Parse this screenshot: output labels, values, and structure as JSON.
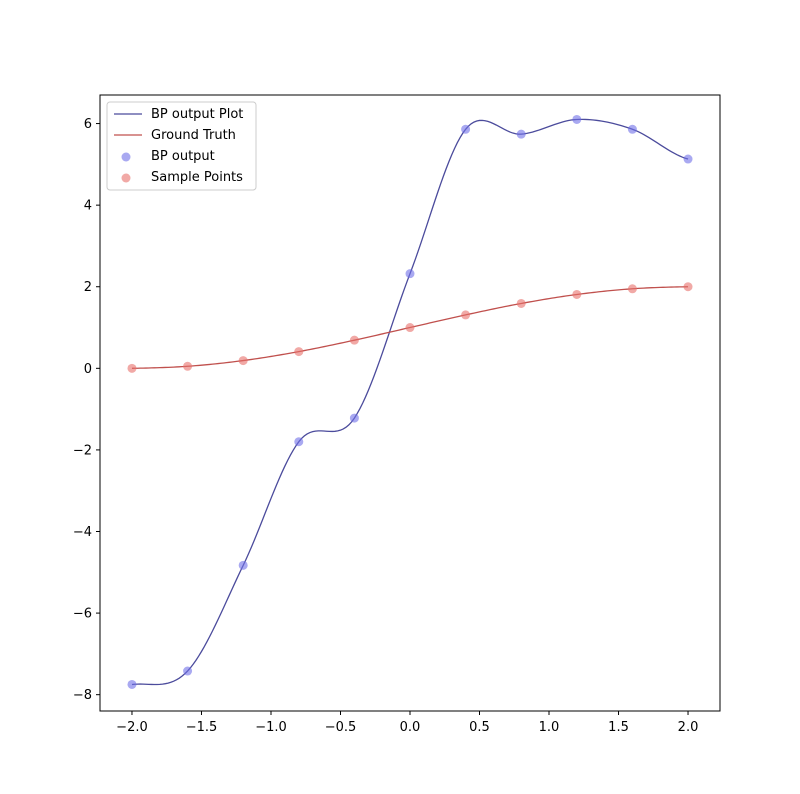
{
  "chart_data": {
    "type": "line",
    "title": "",
    "xlabel": "",
    "ylabel": "",
    "xlim": [
      -2.23,
      2.23
    ],
    "ylim": [
      -8.4,
      6.7
    ],
    "grid": false,
    "legend_position": "top-left",
    "xticks": [
      -2.0,
      -1.5,
      -1.0,
      -0.5,
      0.0,
      0.5,
      1.0,
      1.5,
      2.0
    ],
    "xtick_labels": [
      "−2.0",
      "−1.5",
      "−1.0",
      "−0.5",
      "0.0",
      "0.5",
      "1.0",
      "1.5",
      "2.0"
    ],
    "yticks": [
      -8,
      -6,
      -4,
      -2,
      0,
      2,
      4,
      6
    ],
    "ytick_labels": [
      "−8",
      "−6",
      "−4",
      "−2",
      "0",
      "2",
      "4",
      "6"
    ],
    "series": [
      {
        "name": "BP output Plot",
        "kind": "line",
        "color": "#4b4b9c",
        "x": [
          -2.0,
          -1.6,
          -1.2,
          -0.8,
          -0.4,
          0.0,
          0.4,
          0.8,
          1.2,
          1.6,
          2.0
        ],
        "y": [
          -7.75,
          -7.42,
          -4.83,
          -1.8,
          -1.22,
          2.32,
          5.86,
          5.74,
          6.1,
          5.86,
          5.13
        ]
      },
      {
        "name": "Ground Truth",
        "kind": "line",
        "color": "#c0504d",
        "x": [
          -2.0,
          -1.6,
          -1.2,
          -0.8,
          -0.4,
          0.0,
          0.4,
          0.8,
          1.2,
          1.6,
          2.0
        ],
        "y": [
          0.0,
          0.05,
          0.19,
          0.41,
          0.69,
          1.0,
          1.31,
          1.59,
          1.81,
          1.95,
          2.0
        ]
      },
      {
        "name": "BP output",
        "kind": "scatter",
        "color": "#6f6fe8",
        "x": [
          -2.0,
          -1.6,
          -1.2,
          -0.8,
          -0.4,
          0.0,
          0.4,
          0.8,
          1.2,
          1.6,
          2.0
        ],
        "y": [
          -7.75,
          -7.42,
          -4.83,
          -1.8,
          -1.22,
          2.32,
          5.86,
          5.74,
          6.1,
          5.86,
          5.13
        ]
      },
      {
        "name": "Sample Points",
        "kind": "scatter",
        "color": "#e8706a",
        "x": [
          -2.0,
          -1.6,
          -1.2,
          -0.8,
          -0.4,
          0.0,
          0.4,
          0.8,
          1.2,
          1.6,
          2.0
        ],
        "y": [
          0.0,
          0.05,
          0.19,
          0.41,
          0.69,
          1.0,
          1.31,
          1.59,
          1.81,
          1.95,
          2.0
        ]
      }
    ]
  }
}
